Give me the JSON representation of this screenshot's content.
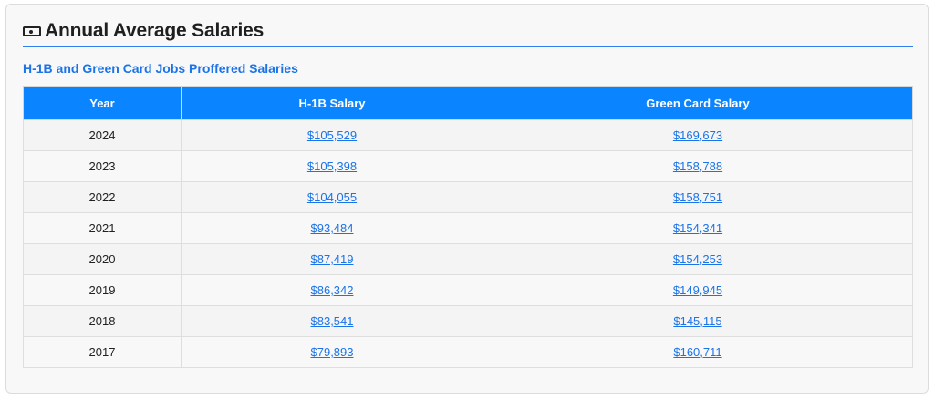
{
  "section": {
    "icon": "money-icon",
    "title": "Annual Average Salaries",
    "subtitle": "H-1B and Green Card Jobs Proffered Salaries",
    "accent": "#2f80ed",
    "header_bg": "#0a84ff",
    "link_color": "#1a73e8"
  },
  "table": {
    "headers": [
      "Year",
      "H-1B Salary",
      "Green Card Salary"
    ],
    "rows": [
      {
        "year": "2024",
        "h1b": "$105,529",
        "green_card": "$169,673"
      },
      {
        "year": "2023",
        "h1b": "$105,398",
        "green_card": "$158,788"
      },
      {
        "year": "2022",
        "h1b": "$104,055",
        "green_card": "$158,751"
      },
      {
        "year": "2021",
        "h1b": "$93,484",
        "green_card": "$154,341"
      },
      {
        "year": "2020",
        "h1b": "$87,419",
        "green_card": "$154,253"
      },
      {
        "year": "2019",
        "h1b": "$86,342",
        "green_card": "$149,945"
      },
      {
        "year": "2018",
        "h1b": "$83,541",
        "green_card": "$145,115"
      },
      {
        "year": "2017",
        "h1b": "$79,893",
        "green_card": "$160,711"
      }
    ]
  }
}
